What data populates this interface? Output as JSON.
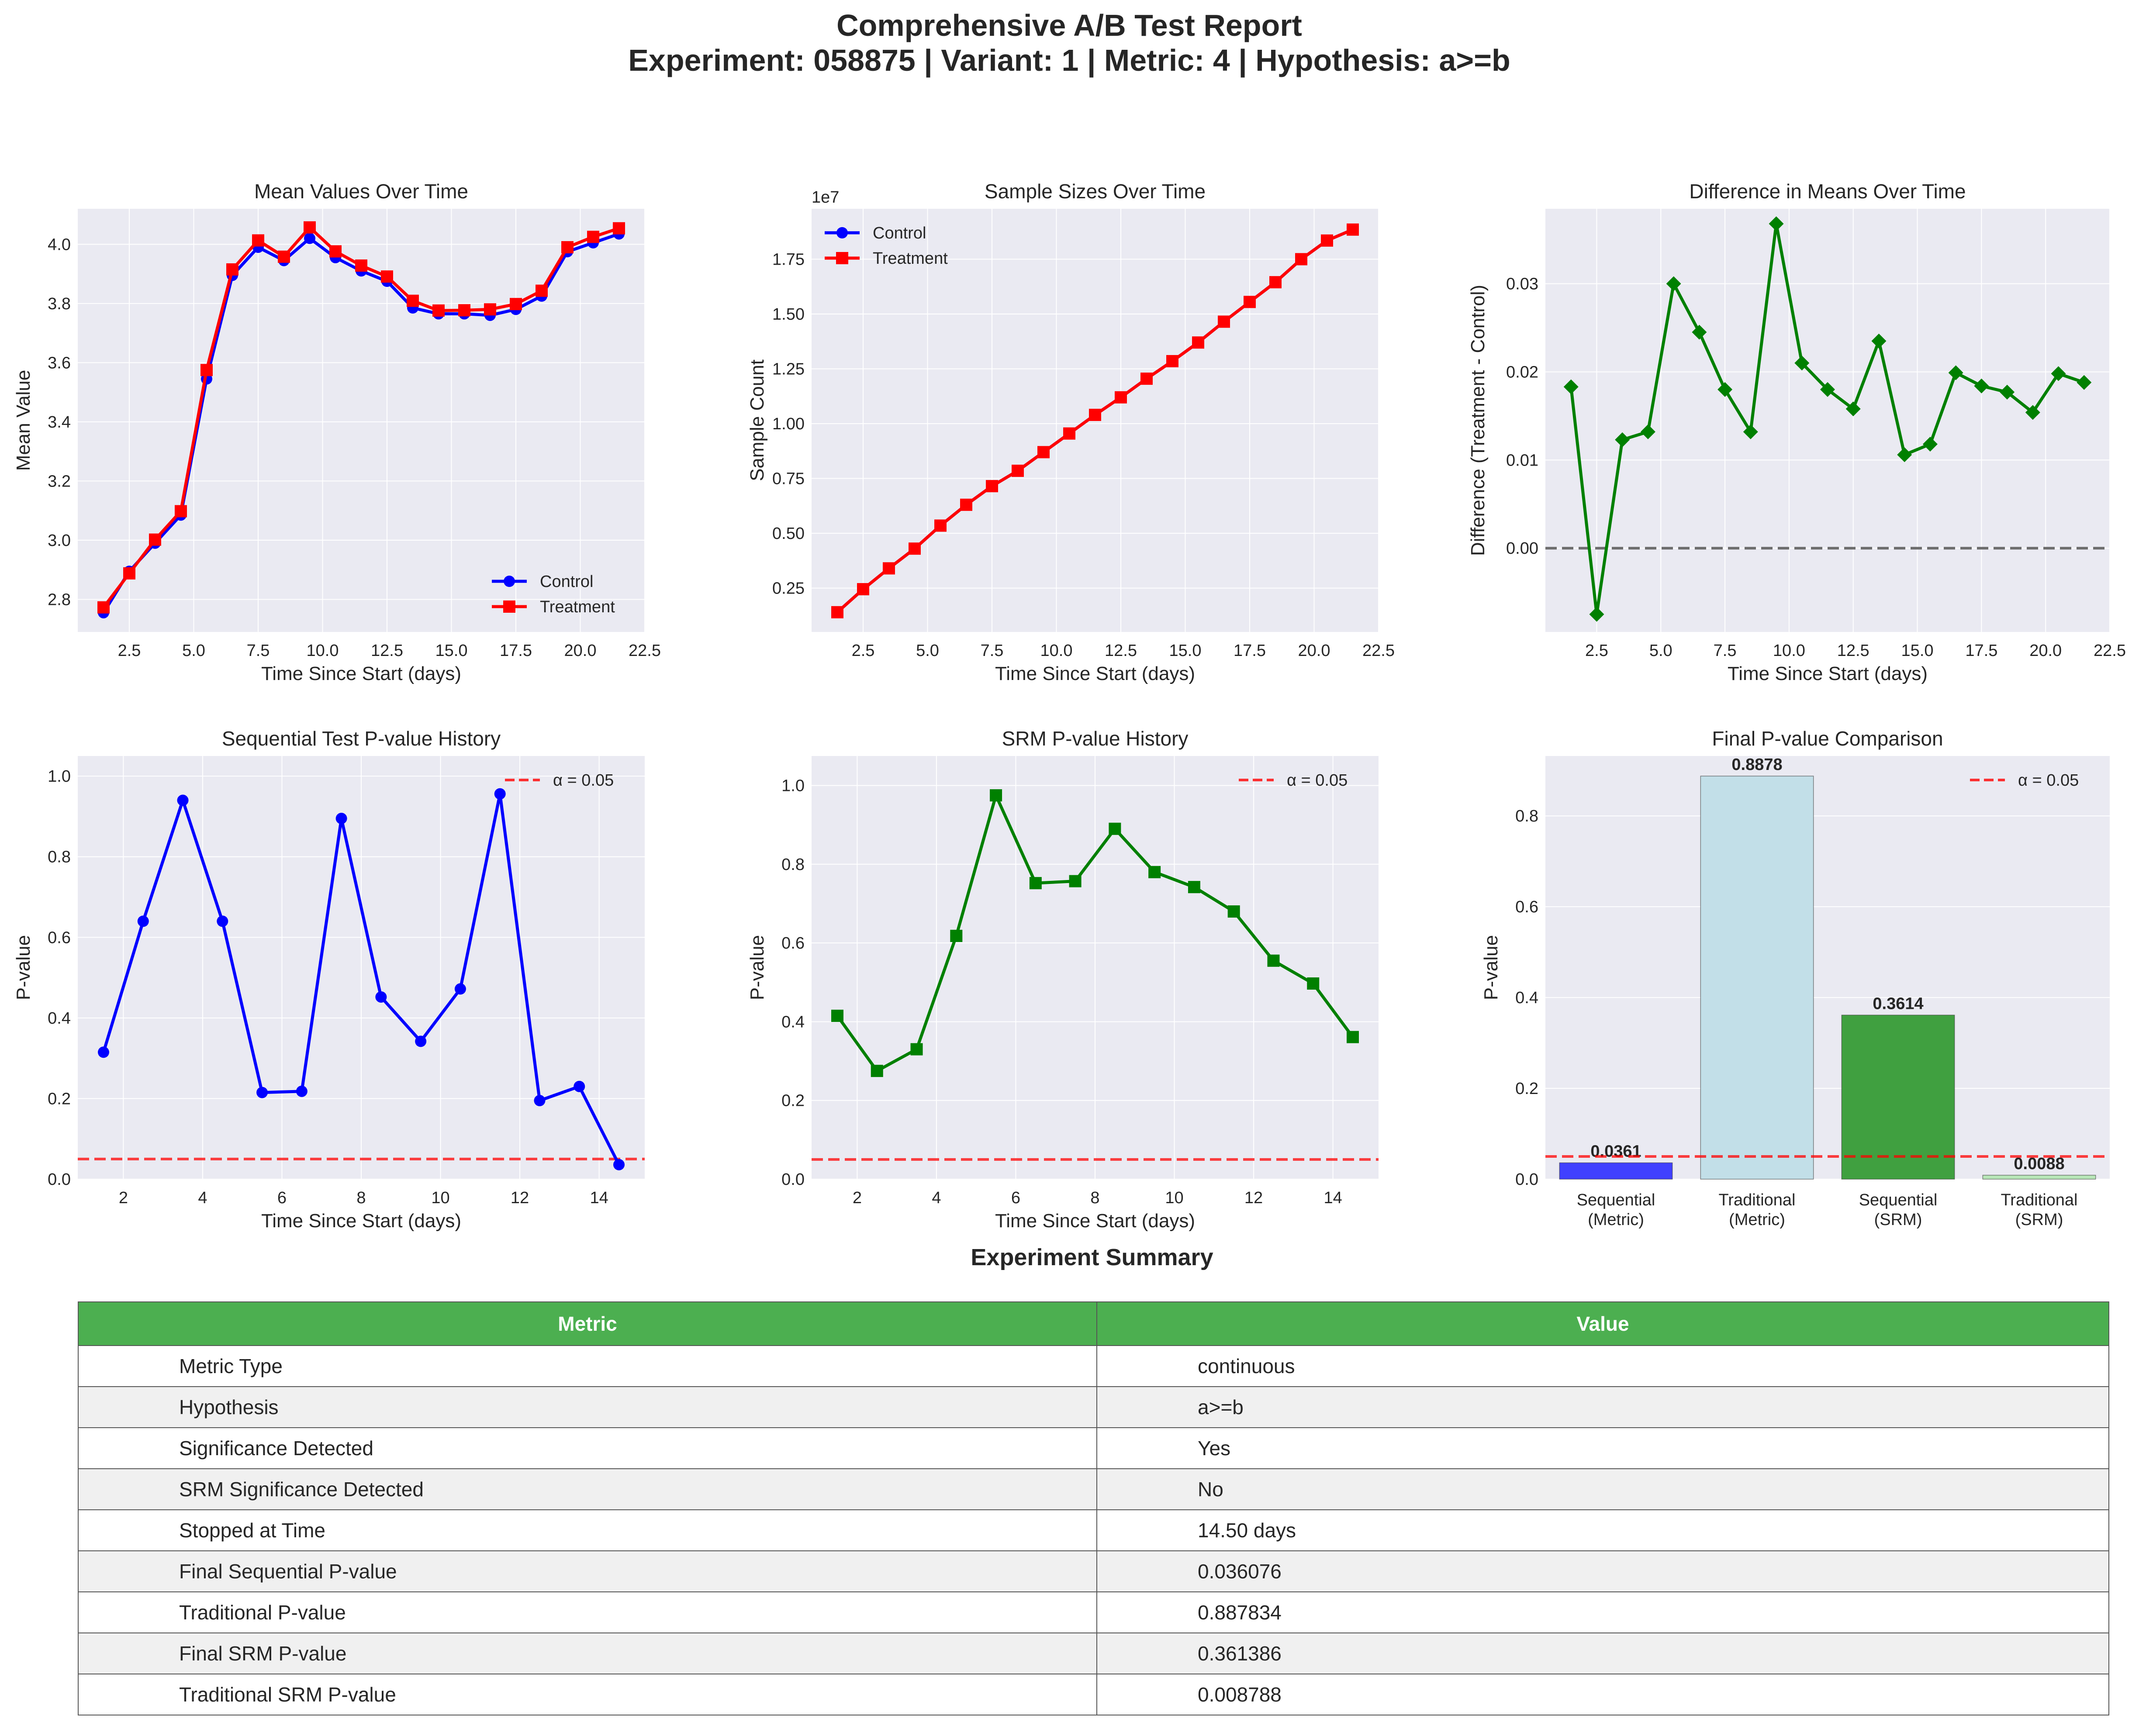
{
  "title_line1": "Comprehensive A/B Test Report",
  "title_line2": "Experiment: 058875 | Variant: 1 | Metric: 4 | Hypothesis: a>=b",
  "summary": {
    "title": "Experiment Summary",
    "header_metric": "Metric",
    "header_value": "Value",
    "rows": [
      {
        "k": "Metric Type",
        "v": "continuous"
      },
      {
        "k": "Hypothesis",
        "v": "a>=b"
      },
      {
        "k": "Significance Detected",
        "v": "Yes"
      },
      {
        "k": "SRM Significance Detected",
        "v": "No"
      },
      {
        "k": "Stopped at Time",
        "v": "14.50 days"
      },
      {
        "k": "Final Sequential P-value",
        "v": "0.036076"
      },
      {
        "k": "Traditional P-value",
        "v": "0.887834"
      },
      {
        "k": "Final SRM P-value",
        "v": "0.361386"
      },
      {
        "k": "Traditional SRM P-value",
        "v": "0.008788"
      }
    ]
  },
  "chart_data": [
    {
      "type": "line",
      "title": "Mean Values Over Time",
      "xlabel": "Time Since Start (days)",
      "ylabel": "Mean Value",
      "xlim": [
        0.5,
        22.5
      ],
      "ylim": [
        2.69,
        4.12
      ],
      "xticks": [
        2.5,
        5.0,
        7.5,
        10.0,
        12.5,
        15.0,
        17.5,
        20.0,
        22.5
      ],
      "yticks": [
        2.8,
        3.0,
        3.2,
        3.4,
        3.6,
        3.8,
        4.0
      ],
      "tick_decimals_x": 1,
      "tick_decimals_y": 1,
      "legend": "lower-right",
      "grid": true,
      "x": [
        1.5,
        2.5,
        3.5,
        4.5,
        5.5,
        6.5,
        7.5,
        8.5,
        9.5,
        10.5,
        11.5,
        12.5,
        13.5,
        14.5,
        15.5,
        16.5,
        17.5,
        18.5,
        19.5,
        20.5,
        21.5
      ],
      "series": [
        {
          "name": "Control",
          "color": "#0000ff",
          "marker": "circle",
          "values": [
            2.755,
            2.895,
            2.99,
            3.085,
            3.545,
            3.895,
            3.99,
            3.945,
            4.02,
            3.955,
            3.91,
            3.875,
            3.785,
            3.765,
            3.765,
            3.76,
            3.78,
            3.825,
            3.975,
            4.005,
            4.035
          ]
        },
        {
          "name": "Treatment",
          "color": "#ff0000",
          "marker": "square",
          "values": [
            2.773,
            2.888,
            3.002,
            3.098,
            3.575,
            3.915,
            4.013,
            3.958,
            4.057,
            3.976,
            3.928,
            3.891,
            3.809,
            3.776,
            3.777,
            3.78,
            3.798,
            3.843,
            3.99,
            4.025,
            4.054
          ]
        }
      ]
    },
    {
      "type": "line",
      "title": "Sample Sizes Over Time",
      "xlabel": "Time Since Start (days)",
      "ylabel": "Sample Count",
      "offset_text": "1e7",
      "xlim": [
        0.5,
        22.5
      ],
      "ylim": [
        0.5,
        19.8
      ],
      "xticks": [
        2.5,
        5.0,
        7.5,
        10.0,
        12.5,
        15.0,
        17.5,
        20.0,
        22.5
      ],
      "yticks": [
        2.5,
        5.0,
        7.5,
        10.0,
        12.5,
        15.0,
        17.5
      ],
      "ytick_labels": [
        "0.25",
        "0.50",
        "0.75",
        "1.00",
        "1.25",
        "1.50",
        "1.75"
      ],
      "tick_decimals_x": 1,
      "legend": "top-left",
      "grid": true,
      "x": [
        1.5,
        2.5,
        3.5,
        4.5,
        5.5,
        6.5,
        7.5,
        8.5,
        9.5,
        10.5,
        11.5,
        12.5,
        13.5,
        14.5,
        15.5,
        16.5,
        17.5,
        18.5,
        19.5,
        20.5,
        21.5
      ],
      "series": [
        {
          "name": "Control",
          "color": "#0000ff",
          "marker": "circle",
          "values": [
            1.4,
            2.45,
            3.4,
            4.3,
            5.35,
            6.3,
            7.15,
            7.85,
            8.7,
            9.55,
            10.4,
            11.2,
            12.05,
            12.85,
            13.7,
            14.65,
            15.55,
            16.45,
            17.5,
            18.35,
            18.85
          ]
        },
        {
          "name": "Treatment",
          "color": "#ff0000",
          "marker": "square",
          "values": [
            1.4,
            2.45,
            3.4,
            4.3,
            5.35,
            6.3,
            7.15,
            7.85,
            8.7,
            9.55,
            10.4,
            11.2,
            12.05,
            12.85,
            13.7,
            14.65,
            15.55,
            16.45,
            17.5,
            18.35,
            18.85
          ]
        }
      ]
    },
    {
      "type": "line",
      "title": "Difference in Means Over Time",
      "xlabel": "Time Since Start (days)",
      "ylabel": "Difference (Treatment - Control)",
      "xlim": [
        0.5,
        22.5
      ],
      "ylim": [
        -0.0095,
        0.0385
      ],
      "xticks": [
        2.5,
        5.0,
        7.5,
        10.0,
        12.5,
        15.0,
        17.5,
        20.0,
        22.5
      ],
      "yticks": [
        0.0,
        0.01,
        0.02,
        0.03
      ],
      "tick_decimals_x": 1,
      "tick_decimals_y": 2,
      "grid": true,
      "hline": {
        "y": 0,
        "color": "#555555"
      },
      "x": [
        1.5,
        2.5,
        3.5,
        4.5,
        5.5,
        6.5,
        7.5,
        8.5,
        9.5,
        10.5,
        11.5,
        12.5,
        13.5,
        14.5,
        15.5,
        16.5,
        17.5,
        18.5,
        19.5,
        20.5,
        21.5
      ],
      "series": [
        {
          "name": "",
          "color": "#008000",
          "marker": "diamond",
          "values": [
            0.0183,
            -0.0075,
            0.0123,
            0.0132,
            0.03,
            0.0245,
            0.018,
            0.0132,
            0.0368,
            0.021,
            0.018,
            0.0158,
            0.0235,
            0.0106,
            0.0118,
            0.0199,
            0.0184,
            0.0177,
            0.0154,
            0.0198,
            0.0188
          ]
        }
      ]
    },
    {
      "type": "line",
      "title": "Sequential Test P-value History",
      "xlabel": "Time Since Start (days)",
      "ylabel": "P-value",
      "xlim": [
        0.85,
        15.15
      ],
      "ylim": [
        0,
        1.05
      ],
      "xticks": [
        2,
        4,
        6,
        8,
        10,
        12,
        14
      ],
      "yticks": [
        0.0,
        0.2,
        0.4,
        0.6,
        0.8,
        1.0
      ],
      "tick_decimals_x": 0,
      "tick_decimals_y": 1,
      "legend": "top-right",
      "grid": true,
      "hline": {
        "y": 0.05,
        "color": "#ff0000",
        "label": "α = 0.05"
      },
      "x": [
        1.5,
        2.5,
        3.5,
        4.5,
        5.5,
        6.5,
        7.5,
        8.5,
        9.5,
        10.5,
        11.5,
        12.5,
        13.5,
        14.5
      ],
      "series": [
        {
          "name": "",
          "color": "#0000ff",
          "marker": "circle",
          "values": [
            0.315,
            0.64,
            0.94,
            0.64,
            0.215,
            0.218,
            0.895,
            0.452,
            0.342,
            0.472,
            0.956,
            0.195,
            0.23,
            0.036
          ]
        }
      ]
    },
    {
      "type": "line",
      "title": "SRM P-value History",
      "xlabel": "Time Since Start (days)",
      "ylabel": "P-value",
      "xlim": [
        0.85,
        15.15
      ],
      "ylim": [
        0,
        1.075
      ],
      "xticks": [
        2,
        4,
        6,
        8,
        10,
        12,
        14
      ],
      "yticks": [
        0.0,
        0.2,
        0.4,
        0.6,
        0.8,
        1.0
      ],
      "tick_decimals_x": 0,
      "tick_decimals_y": 1,
      "legend": "top-right",
      "grid": true,
      "hline": {
        "y": 0.05,
        "color": "#ff0000",
        "label": "α = 0.05"
      },
      "x": [
        1.5,
        2.5,
        3.5,
        4.5,
        5.5,
        6.5,
        7.5,
        8.5,
        9.5,
        10.5,
        11.5,
        12.5,
        13.5,
        14.5
      ],
      "series": [
        {
          "name": "",
          "color": "#008000",
          "marker": "square",
          "values": [
            0.415,
            0.275,
            0.33,
            0.618,
            0.975,
            0.752,
            0.757,
            0.89,
            0.78,
            0.742,
            0.68,
            0.555,
            0.497,
            0.361
          ]
        }
      ]
    },
    {
      "type": "bar",
      "title": "Final P-value Comparison",
      "ylabel": "P-value",
      "ylim": [
        0,
        0.932
      ],
      "yticks": [
        0.0,
        0.2,
        0.4,
        0.6,
        0.8
      ],
      "tick_decimals_y": 1,
      "legend": "top-right",
      "grid": true,
      "hline": {
        "y": 0.05,
        "color": "#ff0000",
        "label": "α = 0.05"
      },
      "categories": [
        [
          "Sequential",
          "(Metric)"
        ],
        [
          "Traditional",
          "(Metric)"
        ],
        [
          "Sequential",
          "(SRM)"
        ],
        [
          "Traditional",
          "(SRM)"
        ]
      ],
      "values": [
        0.0361,
        0.8878,
        0.3614,
        0.0088
      ],
      "value_labels": [
        "0.0361",
        "0.8878",
        "0.3614",
        "0.0088"
      ],
      "colors": [
        "#4040ff",
        "#c2dfe8",
        "#40a040",
        "#b8e6b8"
      ]
    }
  ]
}
